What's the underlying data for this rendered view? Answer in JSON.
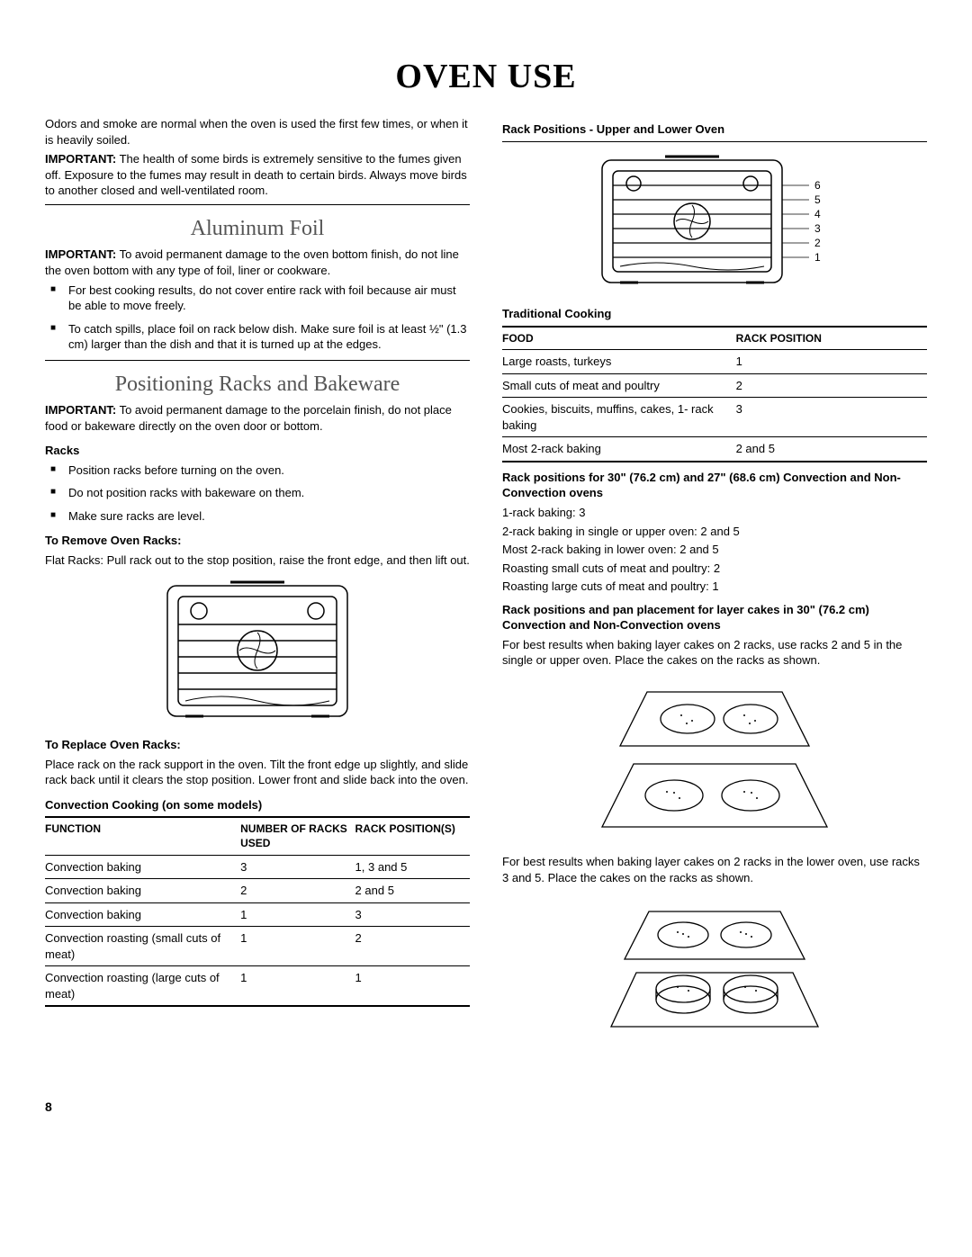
{
  "page_title": "OVEN USE",
  "page_number": "8",
  "left": {
    "intro": "Odors and smoke are normal when the oven is used the first few times, or when it is heavily soiled.",
    "important_birds_label": "IMPORTANT:",
    "important_birds": " The health of some birds is extremely sensitive to the fumes given off. Exposure to the fumes may result in death to certain birds. Always move birds to another closed and well-ventilated room.",
    "h_aluminum": "Aluminum Foil",
    "imp_foil_label": "IMPORTANT:",
    "imp_foil": " To avoid permanent damage to the oven bottom finish, do not line the oven bottom with any type of foil, liner or cookware.",
    "foil_bullets": [
      "For best cooking results, do not cover entire rack with foil because air must be able to move freely.",
      "To catch spills, place foil on rack below dish. Make sure foil is at least ½\" (1.3 cm) larger than the dish and that it is turned up at the edges."
    ],
    "h_positioning": "Positioning Racks and Bakeware",
    "imp_porcelain_label": "IMPORTANT:",
    "imp_porcelain": " To avoid permanent damage to the porcelain finish, do not place food or bakeware directly on the oven door or bottom.",
    "sub_racks": "Racks",
    "racks_bullets": [
      "Position racks before turning on the oven.",
      "Do not position racks with bakeware on them.",
      "Make sure racks are level."
    ],
    "sub_remove": "To Remove Oven Racks:",
    "remove_text": "Flat Racks: Pull rack out to the stop position, raise the front edge, and then lift out.",
    "sub_replace": "To Replace Oven Racks:",
    "replace_text": "Place rack on the rack support in the oven. Tilt the front edge up slightly, and slide rack back until it clears the stop position. Lower front and slide back into the oven.",
    "sub_convection": "Convection Cooking (on some models)",
    "conv_table": {
      "headers": [
        "FUNCTION",
        "NUMBER OF RACKS USED",
        "RACK POSITION(S)"
      ],
      "rows": [
        [
          "Convection baking",
          "3",
          "1, 3 and 5"
        ],
        [
          "Convection baking",
          "2",
          "2 and 5"
        ],
        [
          "Convection baking",
          "1",
          "3"
        ],
        [
          "Convection roasting (small cuts of meat)",
          "1",
          "2"
        ],
        [
          "Convection roasting (large cuts of meat)",
          "1",
          "1"
        ]
      ]
    }
  },
  "right": {
    "sub_rackpos": "Rack Positions - Upper and Lower Oven",
    "rack_labels": [
      "6",
      "5",
      "4",
      "3",
      "2",
      "1"
    ],
    "sub_traditional": "Traditional Cooking",
    "trad_table": {
      "headers": [
        "FOOD",
        "RACK POSITION"
      ],
      "rows": [
        [
          "Large roasts, turkeys",
          "1"
        ],
        [
          "Small cuts of meat and poultry",
          "2"
        ],
        [
          "Cookies, biscuits, muffins, cakes, 1- rack baking",
          "3"
        ],
        [
          "Most 2-rack baking",
          "2 and 5"
        ]
      ]
    },
    "sub_rack30": "Rack positions for 30\" (76.2 cm) and 27\" (68.6 cm) Convection and Non-Convection ovens",
    "rack30_list": [
      "1-rack baking: 3",
      "2-rack baking in single or upper oven: 2 and 5",
      "Most 2-rack baking in lower oven: 2 and 5",
      "Roasting small cuts of meat and poultry: 2",
      "Roasting large cuts of meat and poultry: 1"
    ],
    "sub_layer": "Rack positions and pan placement for layer cakes in 30\" (76.2 cm) Convection and Non-Convection ovens",
    "layer_text": "For best results when baking layer cakes on 2 racks, use racks 2 and 5 in the single or upper oven. Place the cakes on the racks as shown.",
    "lower_text": "For best results when baking layer cakes on 2 racks in the lower oven, use racks 3 and 5. Place the cakes on the racks as shown."
  },
  "style": {
    "text_color": "#000000",
    "bg_color": "#ffffff",
    "heading_gray": "#555555",
    "oven_stroke": "#000000",
    "oven_stroke_w": 1.5
  }
}
